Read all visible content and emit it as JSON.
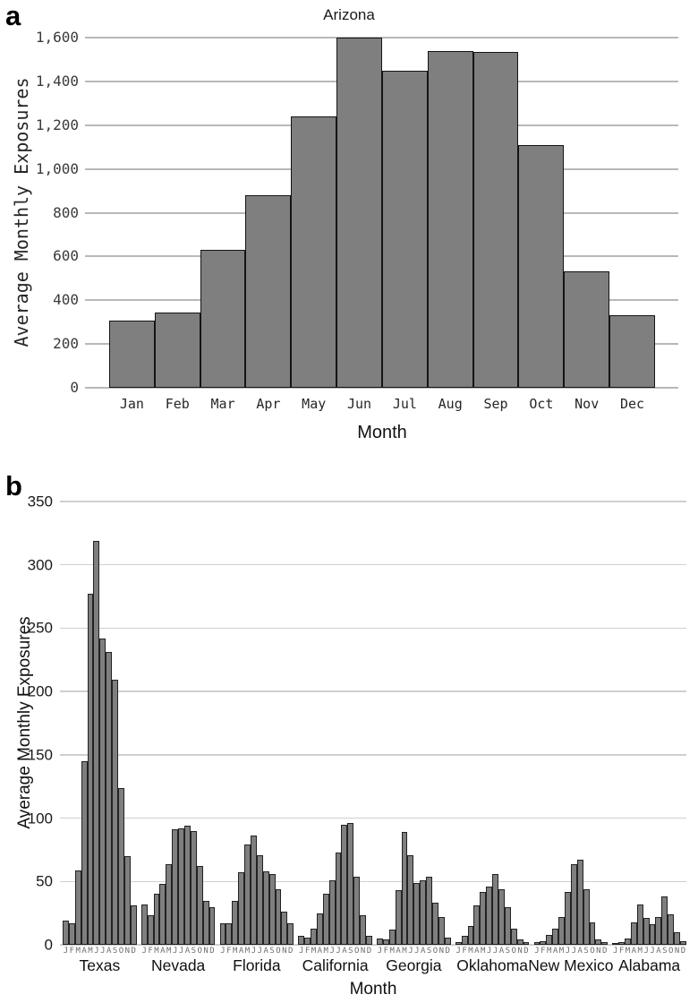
{
  "chart_data": [
    {
      "type": "bar",
      "panel_label": "a",
      "title": "Arizona",
      "xlabel": "Month",
      "ylabel": "Average Monthly Exposures",
      "categories": [
        "Jan",
        "Feb",
        "Mar",
        "Apr",
        "May",
        "Jun",
        "Jul",
        "Aug",
        "Sep",
        "Oct",
        "Nov",
        "Dec"
      ],
      "values": [
        305,
        345,
        630,
        880,
        1240,
        1600,
        1450,
        1540,
        1535,
        1110,
        530,
        330
      ],
      "ylim": [
        0,
        1600
      ],
      "ytick_labels": [
        "0",
        "200",
        "400",
        "600",
        "800",
        "1,000",
        "1,200",
        "1,400",
        "1,600"
      ],
      "grid": true,
      "legend": "none",
      "colors": {
        "bar": "#7f7f7f",
        "bar_border": "#141414",
        "gridline": "#b8b8b8"
      }
    },
    {
      "type": "bar",
      "panel_label": "b",
      "title": "",
      "xlabel": "Month",
      "ylabel": "Average Monthly Exposures",
      "month_letters": [
        "J",
        "F",
        "M",
        "A",
        "M",
        "J",
        "J",
        "A",
        "S",
        "O",
        "N",
        "D"
      ],
      "ylim": [
        0,
        350
      ],
      "ytick_labels": [
        "0",
        "50",
        "100",
        "150",
        "200",
        "250",
        "300",
        "350"
      ],
      "grid": true,
      "legend": "none",
      "series": [
        {
          "name": "Texas",
          "values": [
            19,
            17,
            59,
            145,
            277,
            319,
            242,
            231,
            209,
            124,
            70,
            31
          ]
        },
        {
          "name": "Nevada",
          "values": [
            32,
            23,
            40,
            48,
            64,
            91,
            92,
            94,
            90,
            62,
            35,
            30
          ]
        },
        {
          "name": "Florida",
          "values": [
            17,
            17,
            35,
            57,
            79,
            86,
            71,
            58,
            56,
            44,
            26,
            17
          ]
        },
        {
          "name": "California",
          "values": [
            7,
            6,
            13,
            25,
            40,
            51,
            73,
            95,
            96,
            54,
            23,
            7
          ]
        },
        {
          "name": "Georgia",
          "values": [
            5,
            4,
            12,
            43,
            89,
            71,
            49,
            51,
            54,
            33,
            22,
            6
          ]
        },
        {
          "name": "Oklahoma",
          "values": [
            2,
            7,
            15,
            31,
            42,
            46,
            56,
            44,
            30,
            13,
            4,
            2
          ]
        },
        {
          "name": "New Mexico",
          "values": [
            2,
            3,
            8,
            13,
            22,
            42,
            64,
            67,
            44,
            18,
            4,
            2
          ]
        },
        {
          "name": "Alabama",
          "values": [
            1,
            2,
            5,
            18,
            32,
            21,
            16,
            22,
            38,
            24,
            10,
            3
          ]
        }
      ],
      "colors": {
        "bar": "#7f7f7f",
        "bar_border": "#222222",
        "gridline": "#cfcfcf",
        "month_letter": "#6e6e6e"
      }
    }
  ]
}
